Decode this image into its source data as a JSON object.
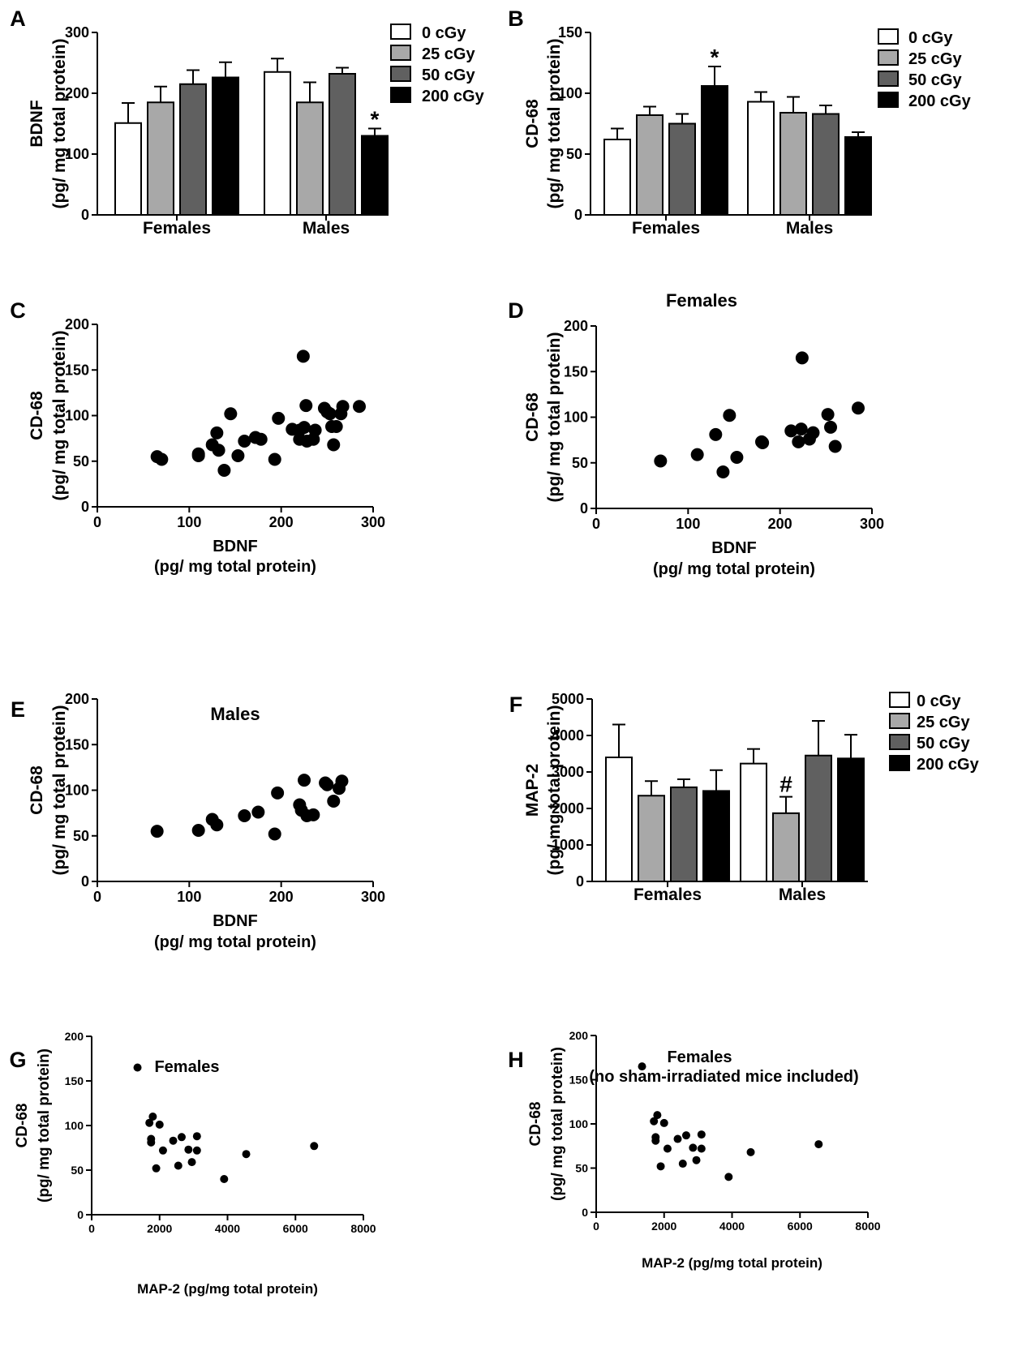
{
  "colors": {
    "c0": "#ffffff",
    "c25": "#a8a8a8",
    "c50": "#606060",
    "c200": "#000000"
  },
  "chart_data": [
    {
      "id": "A",
      "panel_label": "A",
      "type": "bar",
      "title": "",
      "ylabel_line1": "BDNF",
      "ylabel_line2": "(pg/ mg total protein)",
      "xlabel": "",
      "ylim": [
        0,
        300
      ],
      "yticks": [
        "0",
        "100",
        "200",
        "300"
      ],
      "categories": [
        "Females",
        "Males"
      ],
      "legend": {
        "position": "top-right",
        "entries": [
          "0 cGy",
          "25 cGy",
          "50 cGy",
          "200 cGy"
        ]
      },
      "series": [
        {
          "name": "0 cGy",
          "values": [
            151,
            235
          ],
          "errors": [
            33,
            22
          ]
        },
        {
          "name": "25 cGy",
          "values": [
            185,
            185
          ],
          "errors": [
            26,
            33
          ]
        },
        {
          "name": "50 cGy",
          "values": [
            215,
            232
          ],
          "errors": [
            23,
            10
          ]
        },
        {
          "name": "200 cGy",
          "values": [
            226,
            130
          ],
          "errors": [
            25,
            12
          ]
        }
      ],
      "annotations": [
        {
          "text": "*",
          "category": 1,
          "series": 3
        }
      ]
    },
    {
      "id": "B",
      "panel_label": "B",
      "type": "bar",
      "title": "",
      "ylabel_line1": "CD-68",
      "ylabel_line2": "(pg/ mg total protein)",
      "xlabel": "",
      "ylim": [
        0,
        150
      ],
      "yticks": [
        "0",
        "50",
        "100",
        "150"
      ],
      "categories": [
        "Females",
        "Males"
      ],
      "legend": {
        "position": "top-right",
        "entries": [
          "0 cGy",
          "25 cGy",
          "50 cGy",
          "200 cGy"
        ]
      },
      "series": [
        {
          "name": "0 cGy",
          "values": [
            62,
            93
          ],
          "errors": [
            9,
            8
          ]
        },
        {
          "name": "25 cGy",
          "values": [
            82,
            84
          ],
          "errors": [
            7,
            13
          ]
        },
        {
          "name": "50 cGy",
          "values": [
            75,
            83
          ],
          "errors": [
            8,
            7
          ]
        },
        {
          "name": "200 cGy",
          "values": [
            106,
            64
          ],
          "errors": [
            16,
            4
          ]
        }
      ],
      "annotations": [
        {
          "text": "*",
          "category": 0,
          "series": 3
        }
      ]
    },
    {
      "id": "C",
      "panel_label": "C",
      "type": "scatter",
      "title": "",
      "ylabel_line1": "CD-68",
      "ylabel_line2": "(pg/ mg total protein)",
      "xlabel_line1": "BDNF",
      "xlabel_line2": "(pg/ mg total protein)",
      "xlim": [
        0,
        300
      ],
      "ylim": [
        0,
        200
      ],
      "xticks": [
        "0",
        "100",
        "200",
        "300"
      ],
      "yticks": [
        "0",
        "50",
        "100",
        "150",
        "200"
      ],
      "points": [
        [
          65,
          55
        ],
        [
          70,
          52
        ],
        [
          110,
          58
        ],
        [
          110,
          56
        ],
        [
          125,
          68
        ],
        [
          130,
          81
        ],
        [
          132,
          62
        ],
        [
          138,
          40
        ],
        [
          145,
          102
        ],
        [
          153,
          56
        ],
        [
          160,
          72
        ],
        [
          172,
          76
        ],
        [
          178,
          74
        ],
        [
          193,
          52
        ],
        [
          197,
          97
        ],
        [
          212,
          85
        ],
        [
          220,
          84
        ],
        [
          220,
          74
        ],
        [
          224,
          165
        ],
        [
          225,
          87
        ],
        [
          227,
          111
        ],
        [
          228,
          72
        ],
        [
          235,
          74
        ],
        [
          237,
          84
        ],
        [
          247,
          108
        ],
        [
          250,
          104
        ],
        [
          253,
          102
        ],
        [
          255,
          88
        ],
        [
          257,
          68
        ],
        [
          260,
          88
        ],
        [
          265,
          102
        ],
        [
          267,
          110
        ],
        [
          285,
          110
        ]
      ]
    },
    {
      "id": "D",
      "panel_label": "D",
      "type": "scatter",
      "title": "Females",
      "ylabel_line1": "CD-68",
      "ylabel_line2": "(pg/ mg total protein)",
      "xlabel_line1": "BDNF",
      "xlabel_line2": "(pg/ mg total protein)",
      "xlim": [
        0,
        300
      ],
      "ylim": [
        0,
        200
      ],
      "xticks": [
        "0",
        "100",
        "200",
        "300"
      ],
      "yticks": [
        "0",
        "50",
        "100",
        "150",
        "200"
      ],
      "points": [
        [
          70,
          52
        ],
        [
          110,
          59
        ],
        [
          130,
          81
        ],
        [
          138,
          40
        ],
        [
          145,
          102
        ],
        [
          153,
          56
        ],
        [
          180,
          73
        ],
        [
          181,
          72
        ],
        [
          212,
          85
        ],
        [
          220,
          73
        ],
        [
          223,
          87
        ],
        [
          224,
          165
        ],
        [
          232,
          76
        ],
        [
          236,
          83
        ],
        [
          252,
          103
        ],
        [
          255,
          89
        ],
        [
          260,
          68
        ],
        [
          285,
          110
        ]
      ]
    },
    {
      "id": "E",
      "panel_label": "E",
      "type": "scatter",
      "title": "Males",
      "ylabel_line1": "CD-68",
      "ylabel_line2": "(pg/ mg total protein)",
      "xlabel_line1": "BDNF",
      "xlabel_line2": "(pg/ mg total protein)",
      "xlim": [
        0,
        300
      ],
      "ylim": [
        0,
        200
      ],
      "xticks": [
        "0",
        "100",
        "200",
        "300"
      ],
      "yticks": [
        "0",
        "50",
        "100",
        "150",
        "200"
      ],
      "points": [
        [
          65,
          55
        ],
        [
          110,
          56
        ],
        [
          125,
          68
        ],
        [
          130,
          62
        ],
        [
          160,
          72
        ],
        [
          175,
          76
        ],
        [
          193,
          52
        ],
        [
          196,
          97
        ],
        [
          220,
          84
        ],
        [
          222,
          78
        ],
        [
          225,
          111
        ],
        [
          228,
          72
        ],
        [
          235,
          73
        ],
        [
          248,
          108
        ],
        [
          250,
          106
        ],
        [
          257,
          88
        ],
        [
          263,
          102
        ],
        [
          266,
          110
        ]
      ]
    },
    {
      "id": "F",
      "panel_label": "F",
      "type": "bar",
      "title": "",
      "ylabel_line1": "MAP-2",
      "ylabel_line2": "(pg/ mg total protein)",
      "xlabel": "",
      "ylim": [
        0,
        5000
      ],
      "yticks": [
        "0",
        "1000",
        "2000",
        "3000",
        "4000",
        "5000"
      ],
      "categories": [
        "Females",
        "Males"
      ],
      "legend": {
        "position": "top-right",
        "entries": [
          "0 cGy",
          "25 cGy",
          "50 cGy",
          "200 cGy"
        ]
      },
      "series": [
        {
          "name": "0 cGy",
          "values": [
            3400,
            3230
          ],
          "errors": [
            900,
            400
          ]
        },
        {
          "name": "25 cGy",
          "values": [
            2350,
            1870
          ],
          "errors": [
            400,
            450
          ]
        },
        {
          "name": "50 cGy",
          "values": [
            2580,
            3450
          ],
          "errors": [
            220,
            950
          ]
        },
        {
          "name": "200 cGy",
          "values": [
            2480,
            3370
          ],
          "errors": [
            570,
            650
          ]
        }
      ],
      "annotations": [
        {
          "text": "#",
          "category": 1,
          "series": 1
        }
      ]
    },
    {
      "id": "G",
      "panel_label": "G",
      "type": "scatter",
      "title": "Females",
      "ylabel_line1": "CD-68",
      "ylabel_line2": "(pg/ mg total protein)",
      "xlabel_line1": "MAP-2 (pg/mg total protein)",
      "xlabel_line2": "",
      "xlim": [
        0,
        8000
      ],
      "ylim": [
        0,
        200
      ],
      "xticks": [
        "0",
        "2000",
        "4000",
        "6000",
        "8000"
      ],
      "yticks": [
        "0",
        "50",
        "100",
        "150",
        "200"
      ],
      "points": [
        [
          1350,
          165
        ],
        [
          1700,
          103
        ],
        [
          1750,
          85
        ],
        [
          1750,
          81
        ],
        [
          1800,
          110
        ],
        [
          1900,
          52
        ],
        [
          2000,
          101
        ],
        [
          2100,
          72
        ],
        [
          2400,
          83
        ],
        [
          2550,
          55
        ],
        [
          2650,
          87
        ],
        [
          2850,
          73
        ],
        [
          2950,
          59
        ],
        [
          3100,
          72
        ],
        [
          3100,
          88
        ],
        [
          3900,
          40
        ],
        [
          4550,
          68
        ],
        [
          6550,
          77
        ]
      ]
    },
    {
      "id": "H",
      "panel_label": "H",
      "type": "scatter",
      "title": "Females",
      "subtitle": "(no sham-irradiated mice included)",
      "ylabel_line1": "CD-68",
      "ylabel_line2": "(pg/ mg total protein)",
      "xlabel_line1": "MAP-2 (pg/mg total protein)",
      "xlabel_line2": "",
      "xlim": [
        0,
        8000
      ],
      "ylim": [
        0,
        200
      ],
      "xticks": [
        "0",
        "2000",
        "4000",
        "6000",
        "8000"
      ],
      "yticks": [
        "0",
        "50",
        "100",
        "150",
        "200"
      ],
      "points": [
        [
          1350,
          165
        ],
        [
          1700,
          103
        ],
        [
          1750,
          85
        ],
        [
          1750,
          81
        ],
        [
          1800,
          110
        ],
        [
          1900,
          52
        ],
        [
          2000,
          101
        ],
        [
          2100,
          72
        ],
        [
          2400,
          83
        ],
        [
          2550,
          55
        ],
        [
          2650,
          87
        ],
        [
          2850,
          73
        ],
        [
          2950,
          59
        ],
        [
          3100,
          72
        ],
        [
          3100,
          88
        ],
        [
          3900,
          40
        ],
        [
          4550,
          68
        ],
        [
          6550,
          77
        ]
      ]
    }
  ]
}
